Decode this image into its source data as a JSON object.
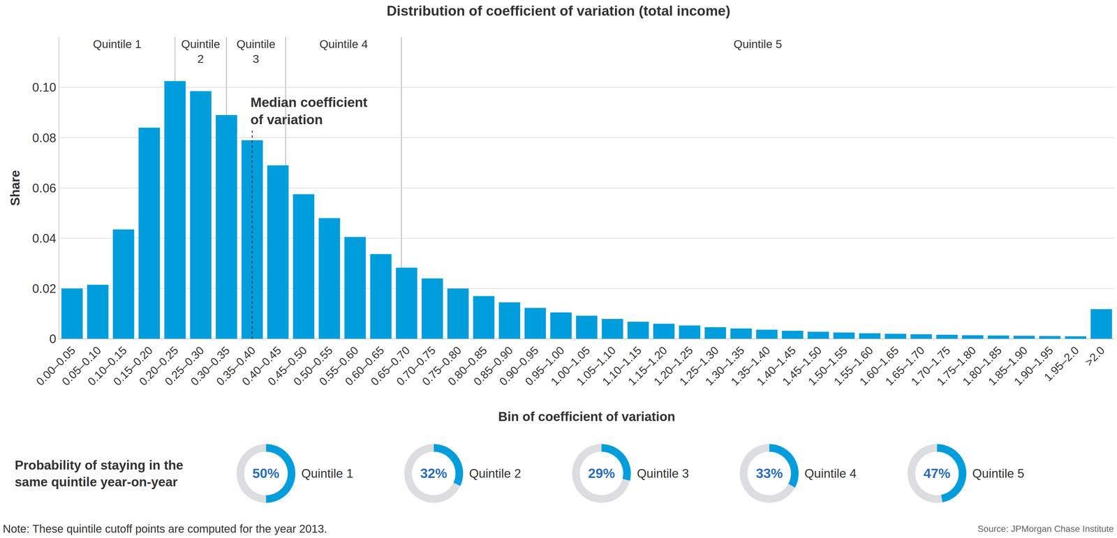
{
  "chart_data": {
    "type": "bar",
    "title": "Distribution of coefficient of variation (total income)",
    "xlabel": "Bin of coefficient of variation",
    "ylabel": "Share",
    "categories": [
      "0.00–0.05",
      "0.05–0.10",
      "0.10–0.15",
      "0.15–0.20",
      "0.20–0.25",
      "0.25–0.30",
      "0.30–0.35",
      "0.35–0.40",
      "0.40–0.45",
      "0.45–0.50",
      "0.50–0.55",
      "0.55–0.60",
      "0.60–0.65",
      "0.65–0.70",
      "0.70–0.75",
      "0.75–0.80",
      "0.80–0.85",
      "0.85–0.90",
      "0.90–0.95",
      "0.95–1.00",
      "1.00–1.05",
      "1.05–1.10",
      "1.10–1.15",
      "1.15–1.20",
      "1.20–1.25",
      "1.25–1.30",
      "1.30–1.35",
      "1.35–1.40",
      "1.40–1.45",
      "1.45–1.50",
      "1.50–1.55",
      "1.55–1.60",
      "1.60–1.65",
      "1.65–1.70",
      "1.70–1.75",
      "1.75–1.80",
      "1.80–1.85",
      "1.85–1.90",
      "1.90–1.95",
      "1.95–2.0",
      ">2.0"
    ],
    "values": [
      0.02,
      0.0215,
      0.0435,
      0.084,
      0.1025,
      0.0985,
      0.089,
      0.079,
      0.069,
      0.0575,
      0.048,
      0.0405,
      0.0337,
      0.0283,
      0.024,
      0.02,
      0.017,
      0.0145,
      0.0123,
      0.0105,
      0.0092,
      0.0079,
      0.0068,
      0.006,
      0.0053,
      0.0046,
      0.0041,
      0.0036,
      0.0032,
      0.0028,
      0.0025,
      0.0022,
      0.002,
      0.0018,
      0.0016,
      0.0014,
      0.0013,
      0.0012,
      0.0011,
      0.001,
      0.0118
    ],
    "color": "#009ddc",
    "ylim": [
      0,
      0.12
    ],
    "yticks": [
      0,
      0.02,
      0.04,
      0.06,
      0.08,
      {
        "value": 0.1,
        "label": "0.10"
      }
    ],
    "grid": true,
    "xlim": [
      0,
      2.05
    ],
    "quintile_cutoffs": [
      0.225,
      0.325,
      0.44,
      0.665
    ],
    "quintile_labels": [
      "Quintile 1",
      "Quintile 2",
      "Quintile 3",
      "Quintile 4",
      "Quintile 5"
    ],
    "median": 0.375,
    "median_label": "Median coefficient of variation",
    "persistence": {
      "type": "pie",
      "title": "Probability of staying in the same quintile year-on-year",
      "categories": [
        "Quintile 1",
        "Quintile 2",
        "Quintile 3",
        "Quintile 4",
        "Quintile 5"
      ],
      "values": [
        50,
        32,
        29,
        33,
        47
      ],
      "value_labels": [
        "50%",
        "32%",
        "29%",
        "33%",
        "47%"
      ],
      "color": "#009ddc"
    },
    "note": "Note: These quintile cutoff points are computed for the year 2013.",
    "source": "Source: JPMorgan Chase Institute"
  }
}
